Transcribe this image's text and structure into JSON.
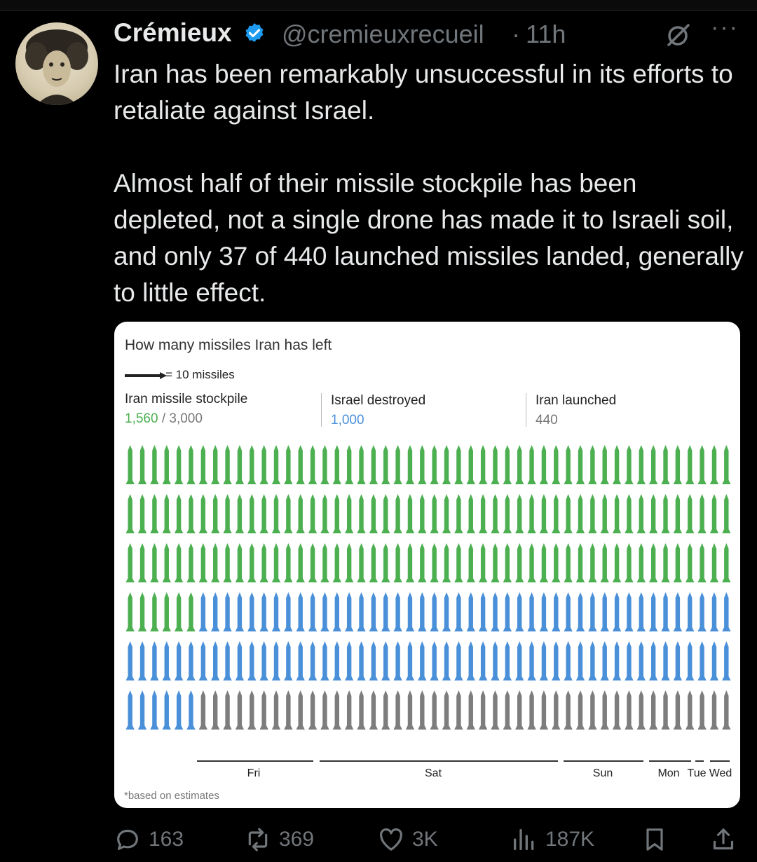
{
  "colors": {
    "stockpile": "#4caf50",
    "destroyed": "#4a90d9",
    "launched": "#7d7d7d",
    "verified": "#1d9bf0"
  },
  "header": {
    "name": "Crémieux",
    "handle": "@cremieuxrecueil",
    "separator": "·",
    "time": "11h",
    "verified_icon": "verified-badge-icon",
    "grok_icon": "grok-icon",
    "more_label": "···"
  },
  "tweet": {
    "paragraph1": "Iran has been remarkably unsuccessful in its efforts to retaliate against Israel.",
    "paragraph2": "Almost half of their missile stockpile has been depleted, not a single drone has made it to Israeli soil, and only 37 of 440 launched missiles landed, generally to little effect."
  },
  "card": {
    "title": "How many missiles Iran has left",
    "legend": "= 10 missiles",
    "columns": [
      {
        "label": "Iran missile stockpile",
        "value": "1,560",
        "value_total": "/ 3,000"
      },
      {
        "label": "Israel destroyed",
        "value": "1,000"
      },
      {
        "label": "Iran launched",
        "value": "440"
      }
    ],
    "days": [
      "Fri",
      "Sat",
      "Sun",
      "Mon",
      "Tue",
      "Wed"
    ],
    "footnote": "*based on estimates"
  },
  "chart_data": {
    "type": "table",
    "title": "How many missiles Iran has left",
    "unit": "= 10 missiles",
    "categories": [
      "Iran missile stockpile",
      "Israel destroyed",
      "Iran launched"
    ],
    "values": [
      1560,
      1000,
      440
    ],
    "total": 3000,
    "icons_per_row": 50,
    "rows": 6,
    "icon_counts": {
      "stockpile": 156,
      "destroyed": 100,
      "launched": 44
    },
    "x_labels": [
      "Fri",
      "Sat",
      "Sun",
      "Mon",
      "Tue",
      "Wed"
    ]
  },
  "actions": {
    "replies": "163",
    "reposts": "369",
    "likes": "3K",
    "views": "187K"
  }
}
